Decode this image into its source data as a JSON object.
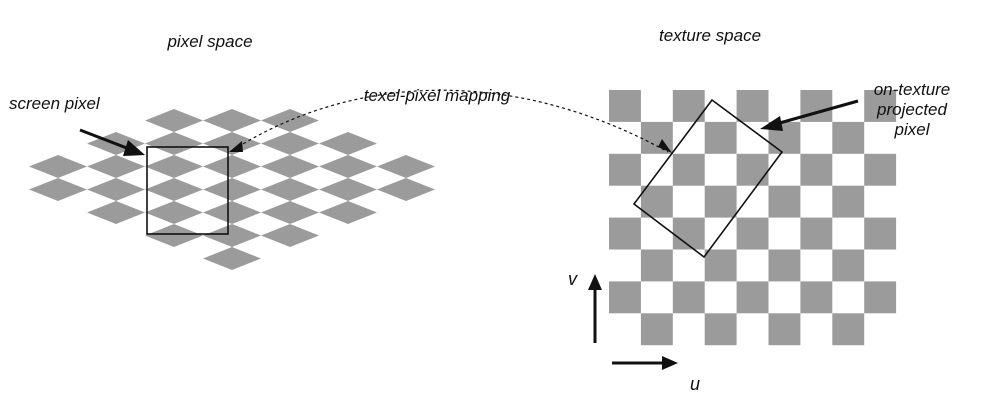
{
  "labels": {
    "pixel_space": "pixel space",
    "texture_space": "texture space",
    "screen_pixel": "screen pixel",
    "mapping": "texel-pixel mapping",
    "projected_line1": "on-texture",
    "projected_line2": "projected",
    "projected_line3": "pixel",
    "axis_v": "v",
    "axis_u": "u"
  },
  "colors": {
    "tile": "#9b9b9b",
    "stroke": "#111111",
    "background": "#ffffff"
  },
  "pixel_grid": {
    "rows": [
      3,
      5,
      7,
      7,
      5,
      3,
      1
    ]
  },
  "texture_grid": {
    "cols": 9,
    "rows": 8
  }
}
